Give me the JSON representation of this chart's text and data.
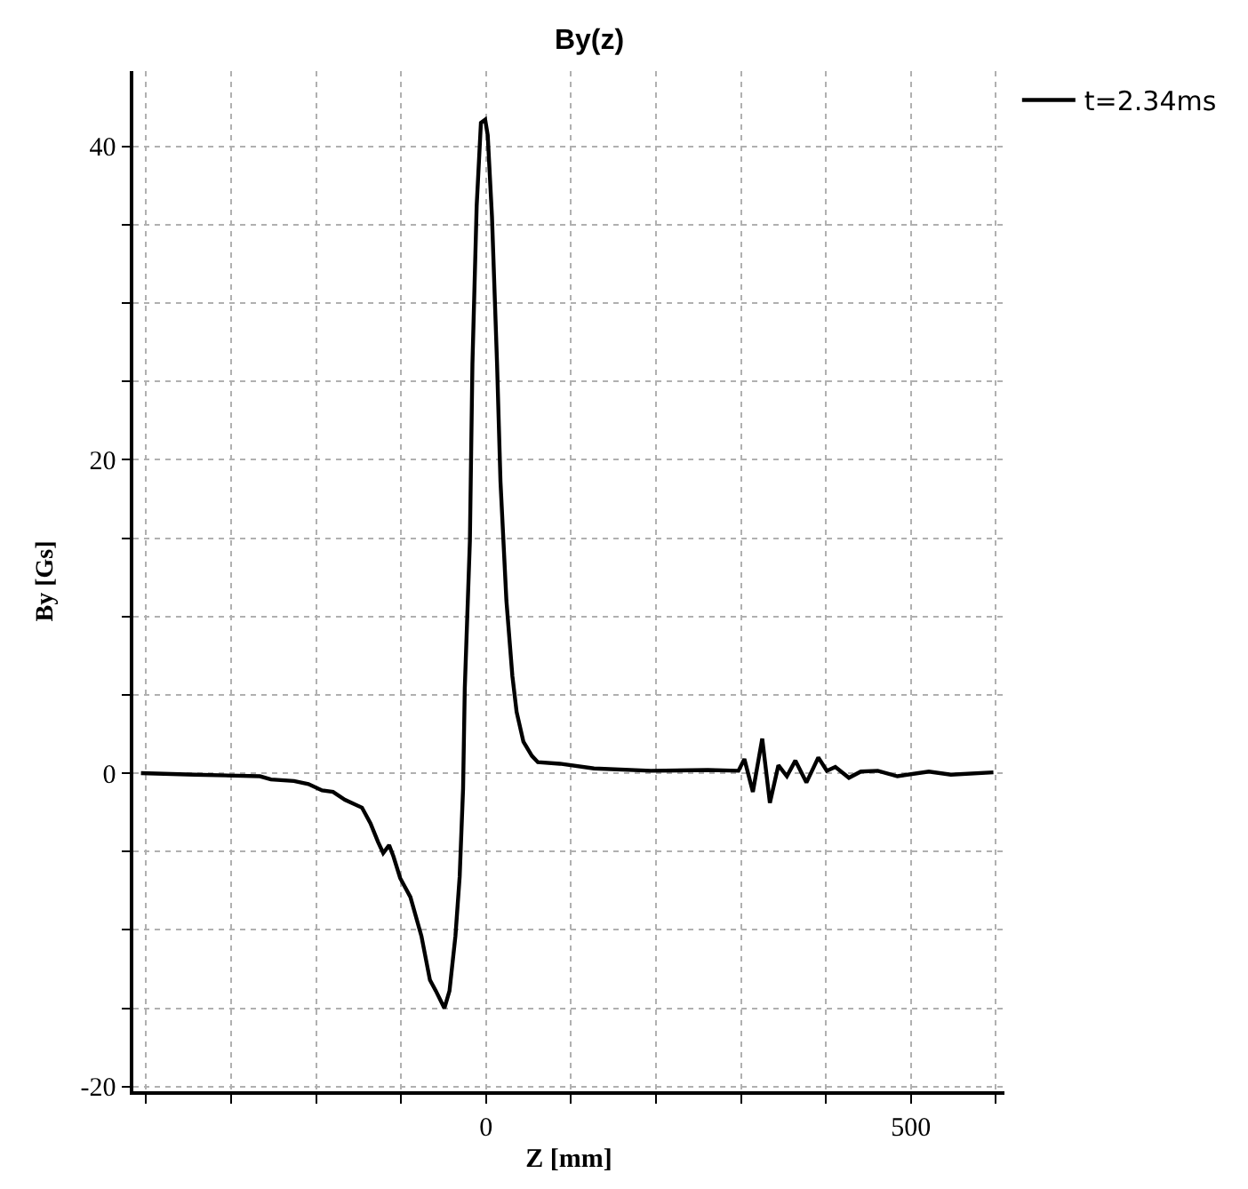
{
  "chart_data": {
    "type": "line",
    "title": "By(z)",
    "xlabel": "Z [mm]",
    "ylabel": "By [Gs]",
    "xlim": [
      -415,
      610
    ],
    "ylim": [
      -20.3,
      44.8
    ],
    "xticks": [
      {
        "value": -400,
        "label": null
      },
      {
        "value": -300,
        "label": null
      },
      {
        "value": -200,
        "label": null
      },
      {
        "value": -100,
        "label": null
      },
      0,
      {
        "value": 100,
        "label": null
      },
      {
        "value": 200,
        "label": null
      },
      {
        "value": 300,
        "label": null
      },
      {
        "value": 400,
        "label": null
      },
      500,
      {
        "value": 600,
        "label": null
      }
    ],
    "yticks": [
      -20,
      {
        "value": -15,
        "label": null
      },
      {
        "value": -10,
        "label": null
      },
      {
        "value": -5,
        "label": null
      },
      0,
      {
        "value": 5,
        "label": null
      },
      {
        "value": 10,
        "label": null
      },
      {
        "value": 15,
        "label": null
      },
      20,
      {
        "value": 25,
        "label": null
      },
      {
        "value": 30,
        "label": null
      },
      {
        "value": 35,
        "label": null
      },
      40
    ],
    "grid": true,
    "legend": "top right",
    "marker": "none",
    "line_style": "solid",
    "series": [
      {
        "name": "t=2.34ms",
        "color": "#000000",
        "x": [
          -406,
          -343,
          -266,
          -253,
          -226,
          -209,
          -193,
          -180,
          -166,
          -146,
          -136,
          -127,
          -121,
          -114,
          -109,
          -101,
          -89,
          -76,
          -66,
          -59,
          -49,
          -43,
          -36,
          -31,
          -27,
          -25,
          -19,
          -16,
          -11,
          -6,
          -1,
          2,
          7,
          13,
          17,
          24,
          31,
          36,
          44,
          54,
          61,
          87,
          127,
          194,
          261,
          297,
          304,
          314,
          325,
          334,
          344,
          354,
          364,
          377,
          391,
          401,
          411,
          427,
          441,
          461,
          484,
          521,
          547,
          597
        ],
        "values": [
          0,
          -0.1,
          -0.2,
          -0.4,
          -0.5,
          -0.7,
          -1.1,
          -1.2,
          -1.7,
          -2.2,
          -3.2,
          -4.4,
          -5.1,
          -4.6,
          -5.3,
          -6.7,
          -7.9,
          -10.4,
          -13.2,
          -13.9,
          -15.0,
          -13.9,
          -10.4,
          -6.6,
          -1.0,
          5.4,
          14.8,
          26.1,
          36.2,
          41.5,
          41.7,
          40.7,
          35.5,
          26.1,
          18.6,
          11.0,
          6.2,
          3.9,
          2.0,
          1.1,
          0.7,
          0.6,
          0.3,
          0.15,
          0.2,
          0.15,
          0.9,
          -1.2,
          2.2,
          -1.9,
          0.5,
          -0.2,
          0.8,
          -0.6,
          1.0,
          0.15,
          0.4,
          -0.3,
          0.1,
          0.15,
          -0.2,
          0.1,
          -0.1,
          0.05
        ]
      }
    ]
  }
}
